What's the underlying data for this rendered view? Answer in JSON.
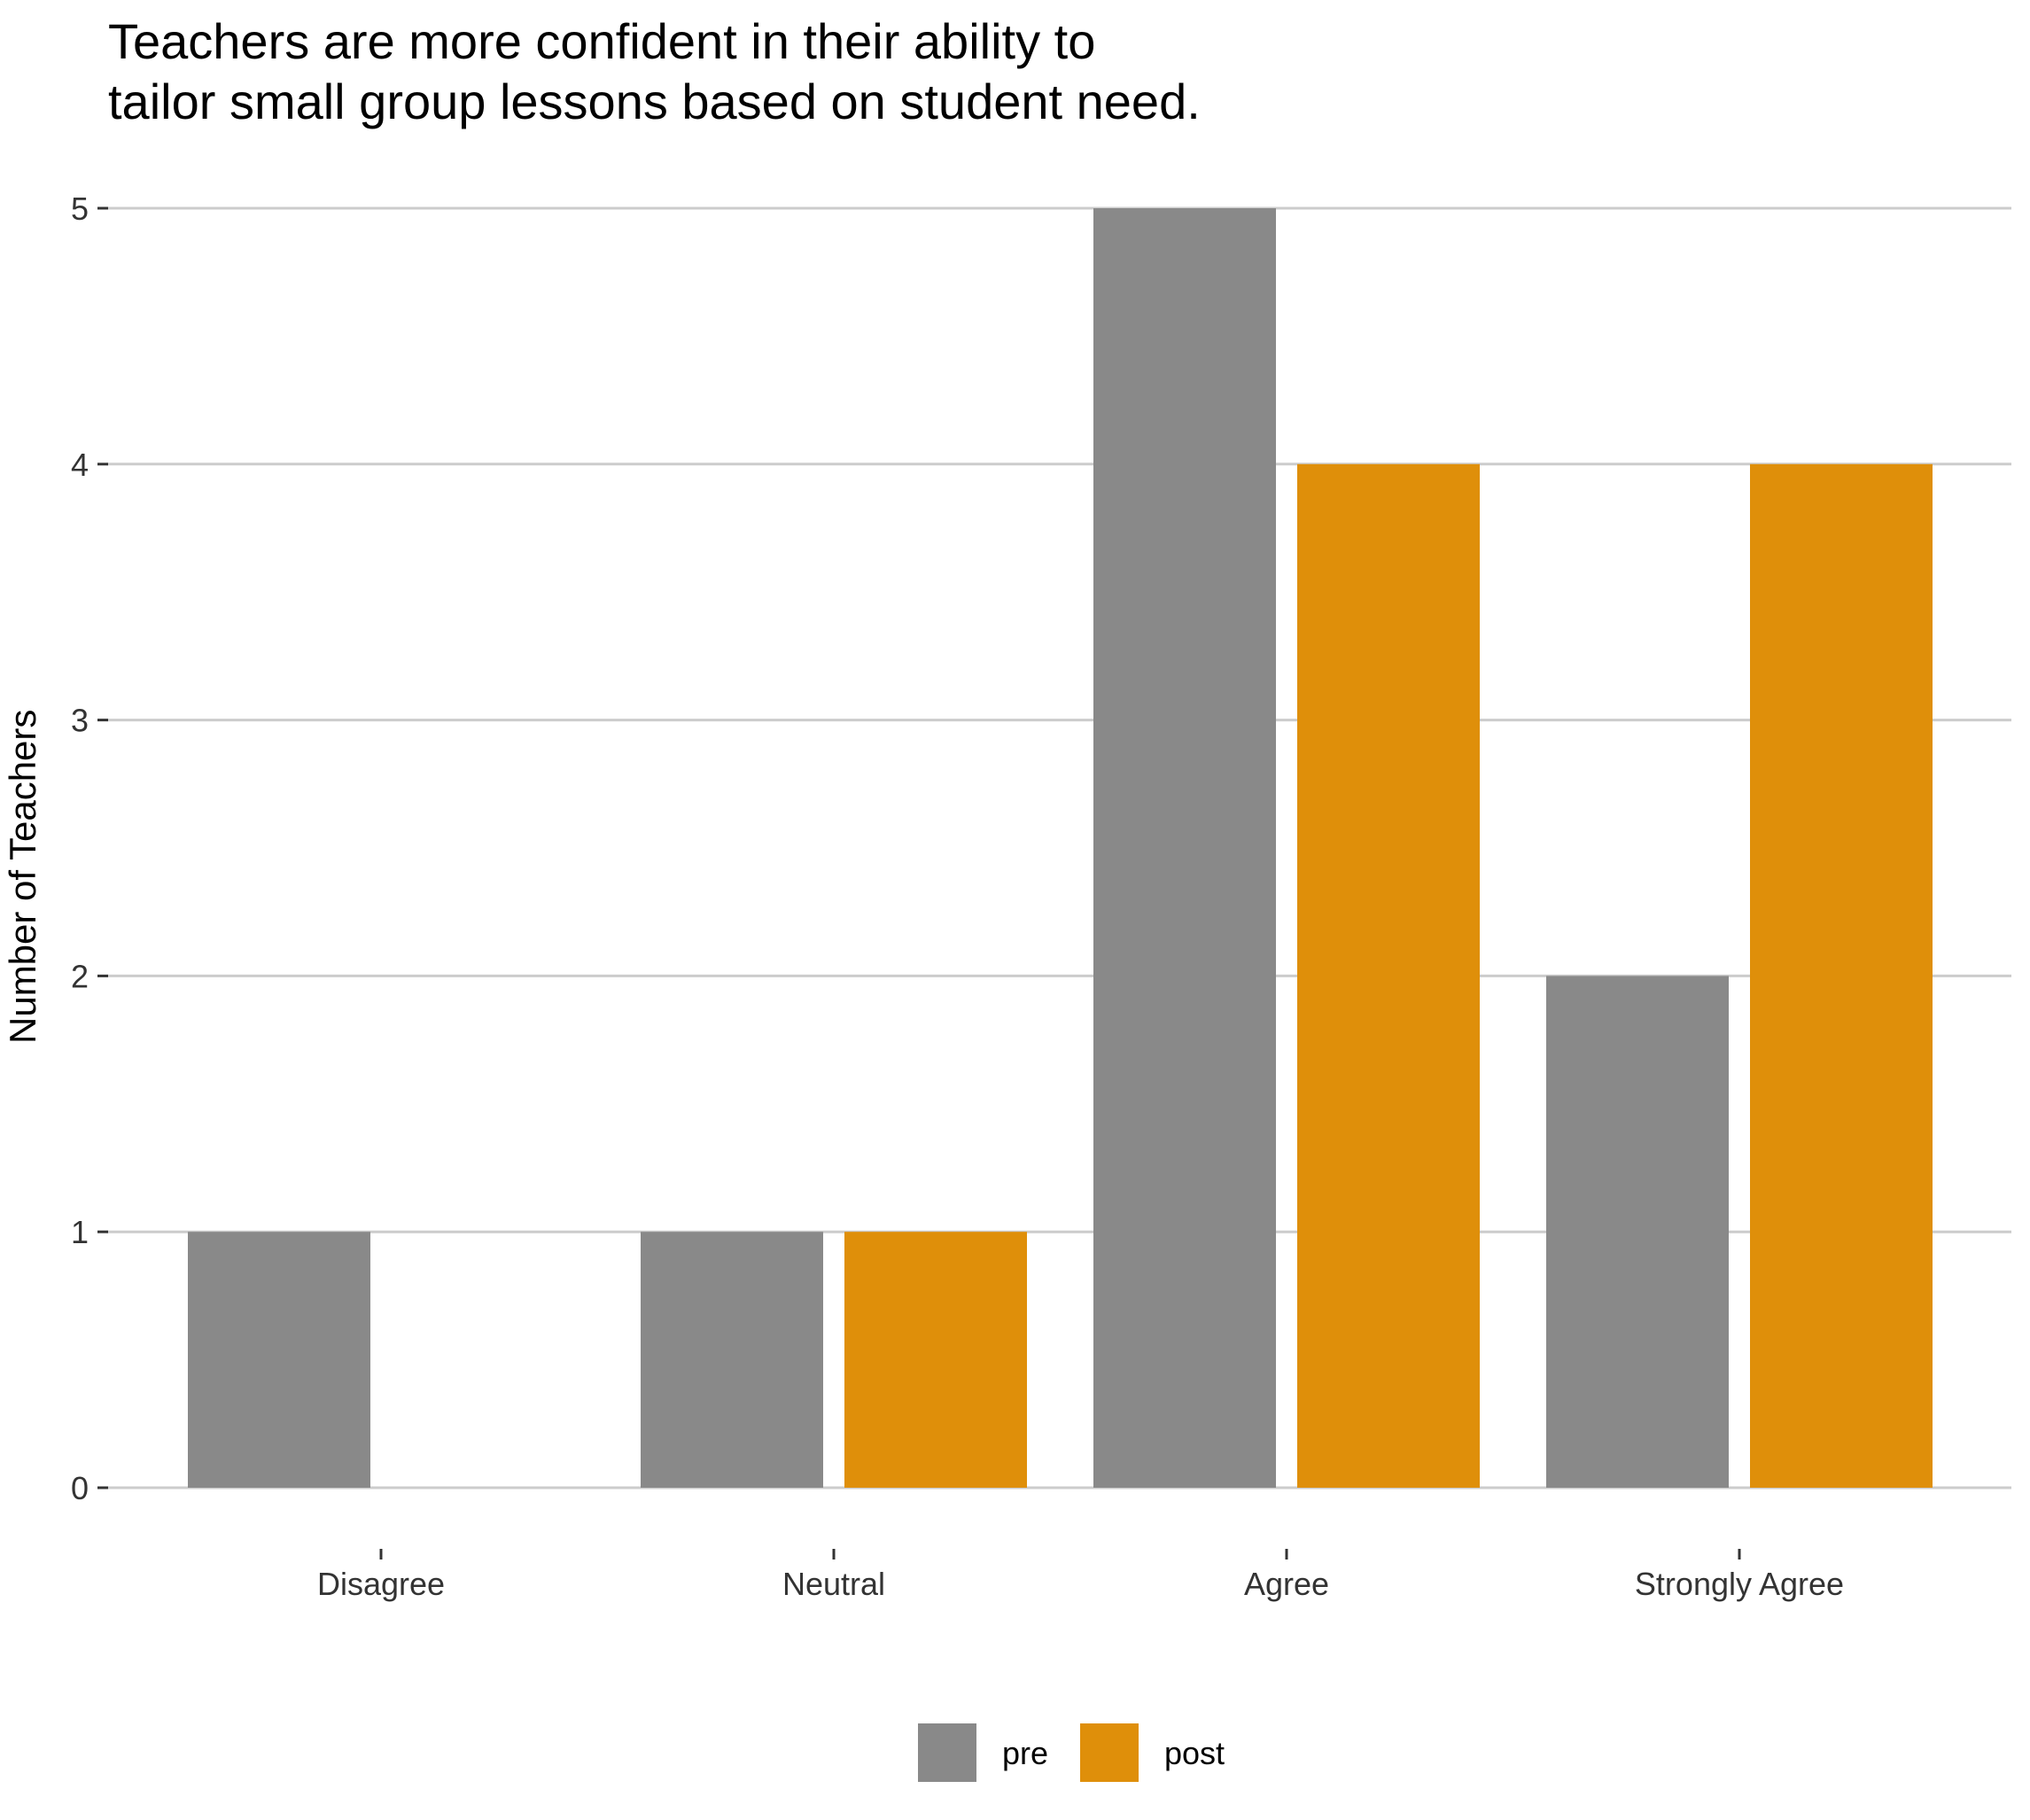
{
  "chart_data": {
    "type": "bar",
    "title_lines": [
      "Teachers are more confident in their ability to",
      "tailor small group lessons based on student need."
    ],
    "xlabel": "",
    "ylabel": "Number of Teachers",
    "categories": [
      "Disagree",
      "Neutral",
      "Agree",
      "Strongly Agree"
    ],
    "series": [
      {
        "name": "pre",
        "color": "#898989",
        "values": [
          1,
          1,
          5,
          2
        ]
      },
      {
        "name": "post",
        "color": "#DF8F0A",
        "values": [
          0,
          1,
          4,
          4
        ]
      }
    ],
    "ylim": [
      0,
      5
    ],
    "yticks": [
      0,
      1,
      2,
      3,
      4,
      5
    ],
    "grid": "horizontal",
    "legend_position": "bottom"
  }
}
